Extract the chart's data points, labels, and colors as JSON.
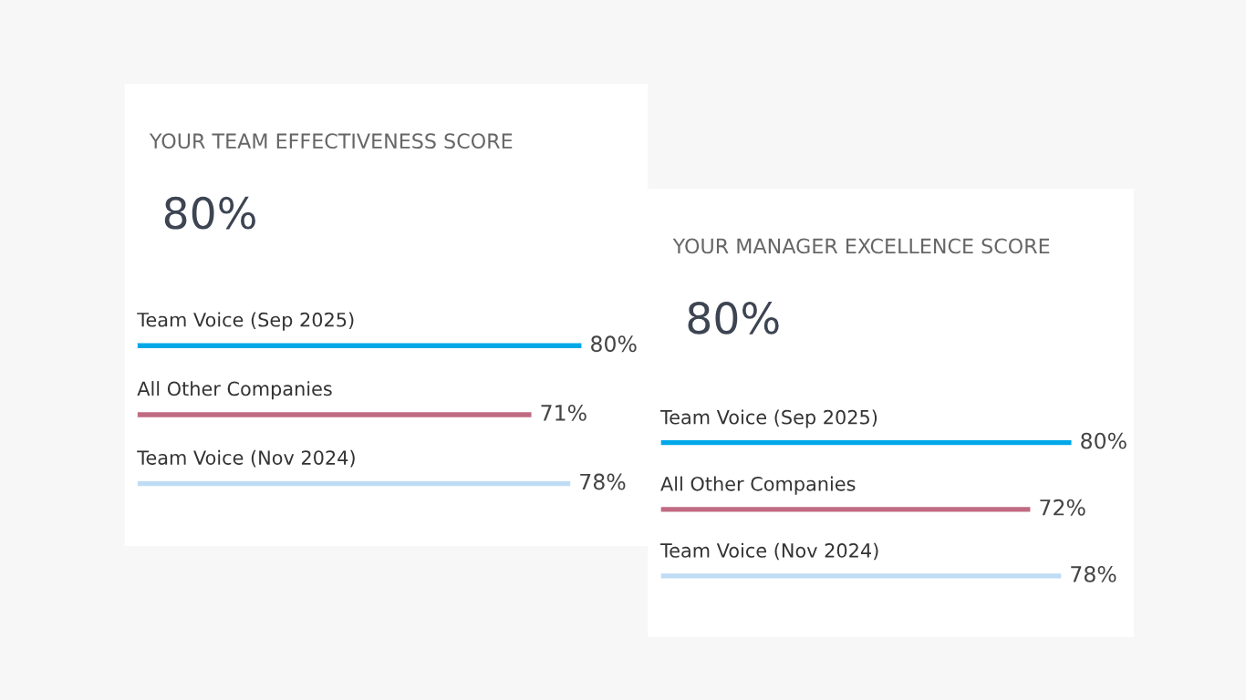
{
  "chart_data": [
    {
      "type": "bar",
      "orientation": "horizontal",
      "title": "YOUR TEAM EFFECTIVENESS SCORE",
      "annotations": [
        "80%"
      ],
      "categories": [
        "Team Voice (Sep 2025)",
        "All Other Companies",
        "Team Voice (Nov 2024)"
      ],
      "values": [
        80,
        71,
        78
      ],
      "colors": [
        "#00a8e8",
        "#c06b82",
        "#bfdcf5"
      ],
      "value_labels": [
        "80%",
        "71%",
        "78%"
      ],
      "tick_labels": false
    },
    {
      "type": "bar",
      "orientation": "horizontal",
      "title": "YOUR MANAGER EXCELLENCE SCORE",
      "annotations": [
        "80%"
      ],
      "categories": [
        "Team Voice (Sep 2025)",
        "All Other Companies",
        "Team Voice (Nov 2024)"
      ],
      "values": [
        80,
        72,
        78
      ],
      "colors": [
        "#00a8e8",
        "#c06b82",
        "#bfdcf5"
      ],
      "value_labels": [
        "80%",
        "72%",
        "78%"
      ],
      "tick_labels": false
    }
  ]
}
